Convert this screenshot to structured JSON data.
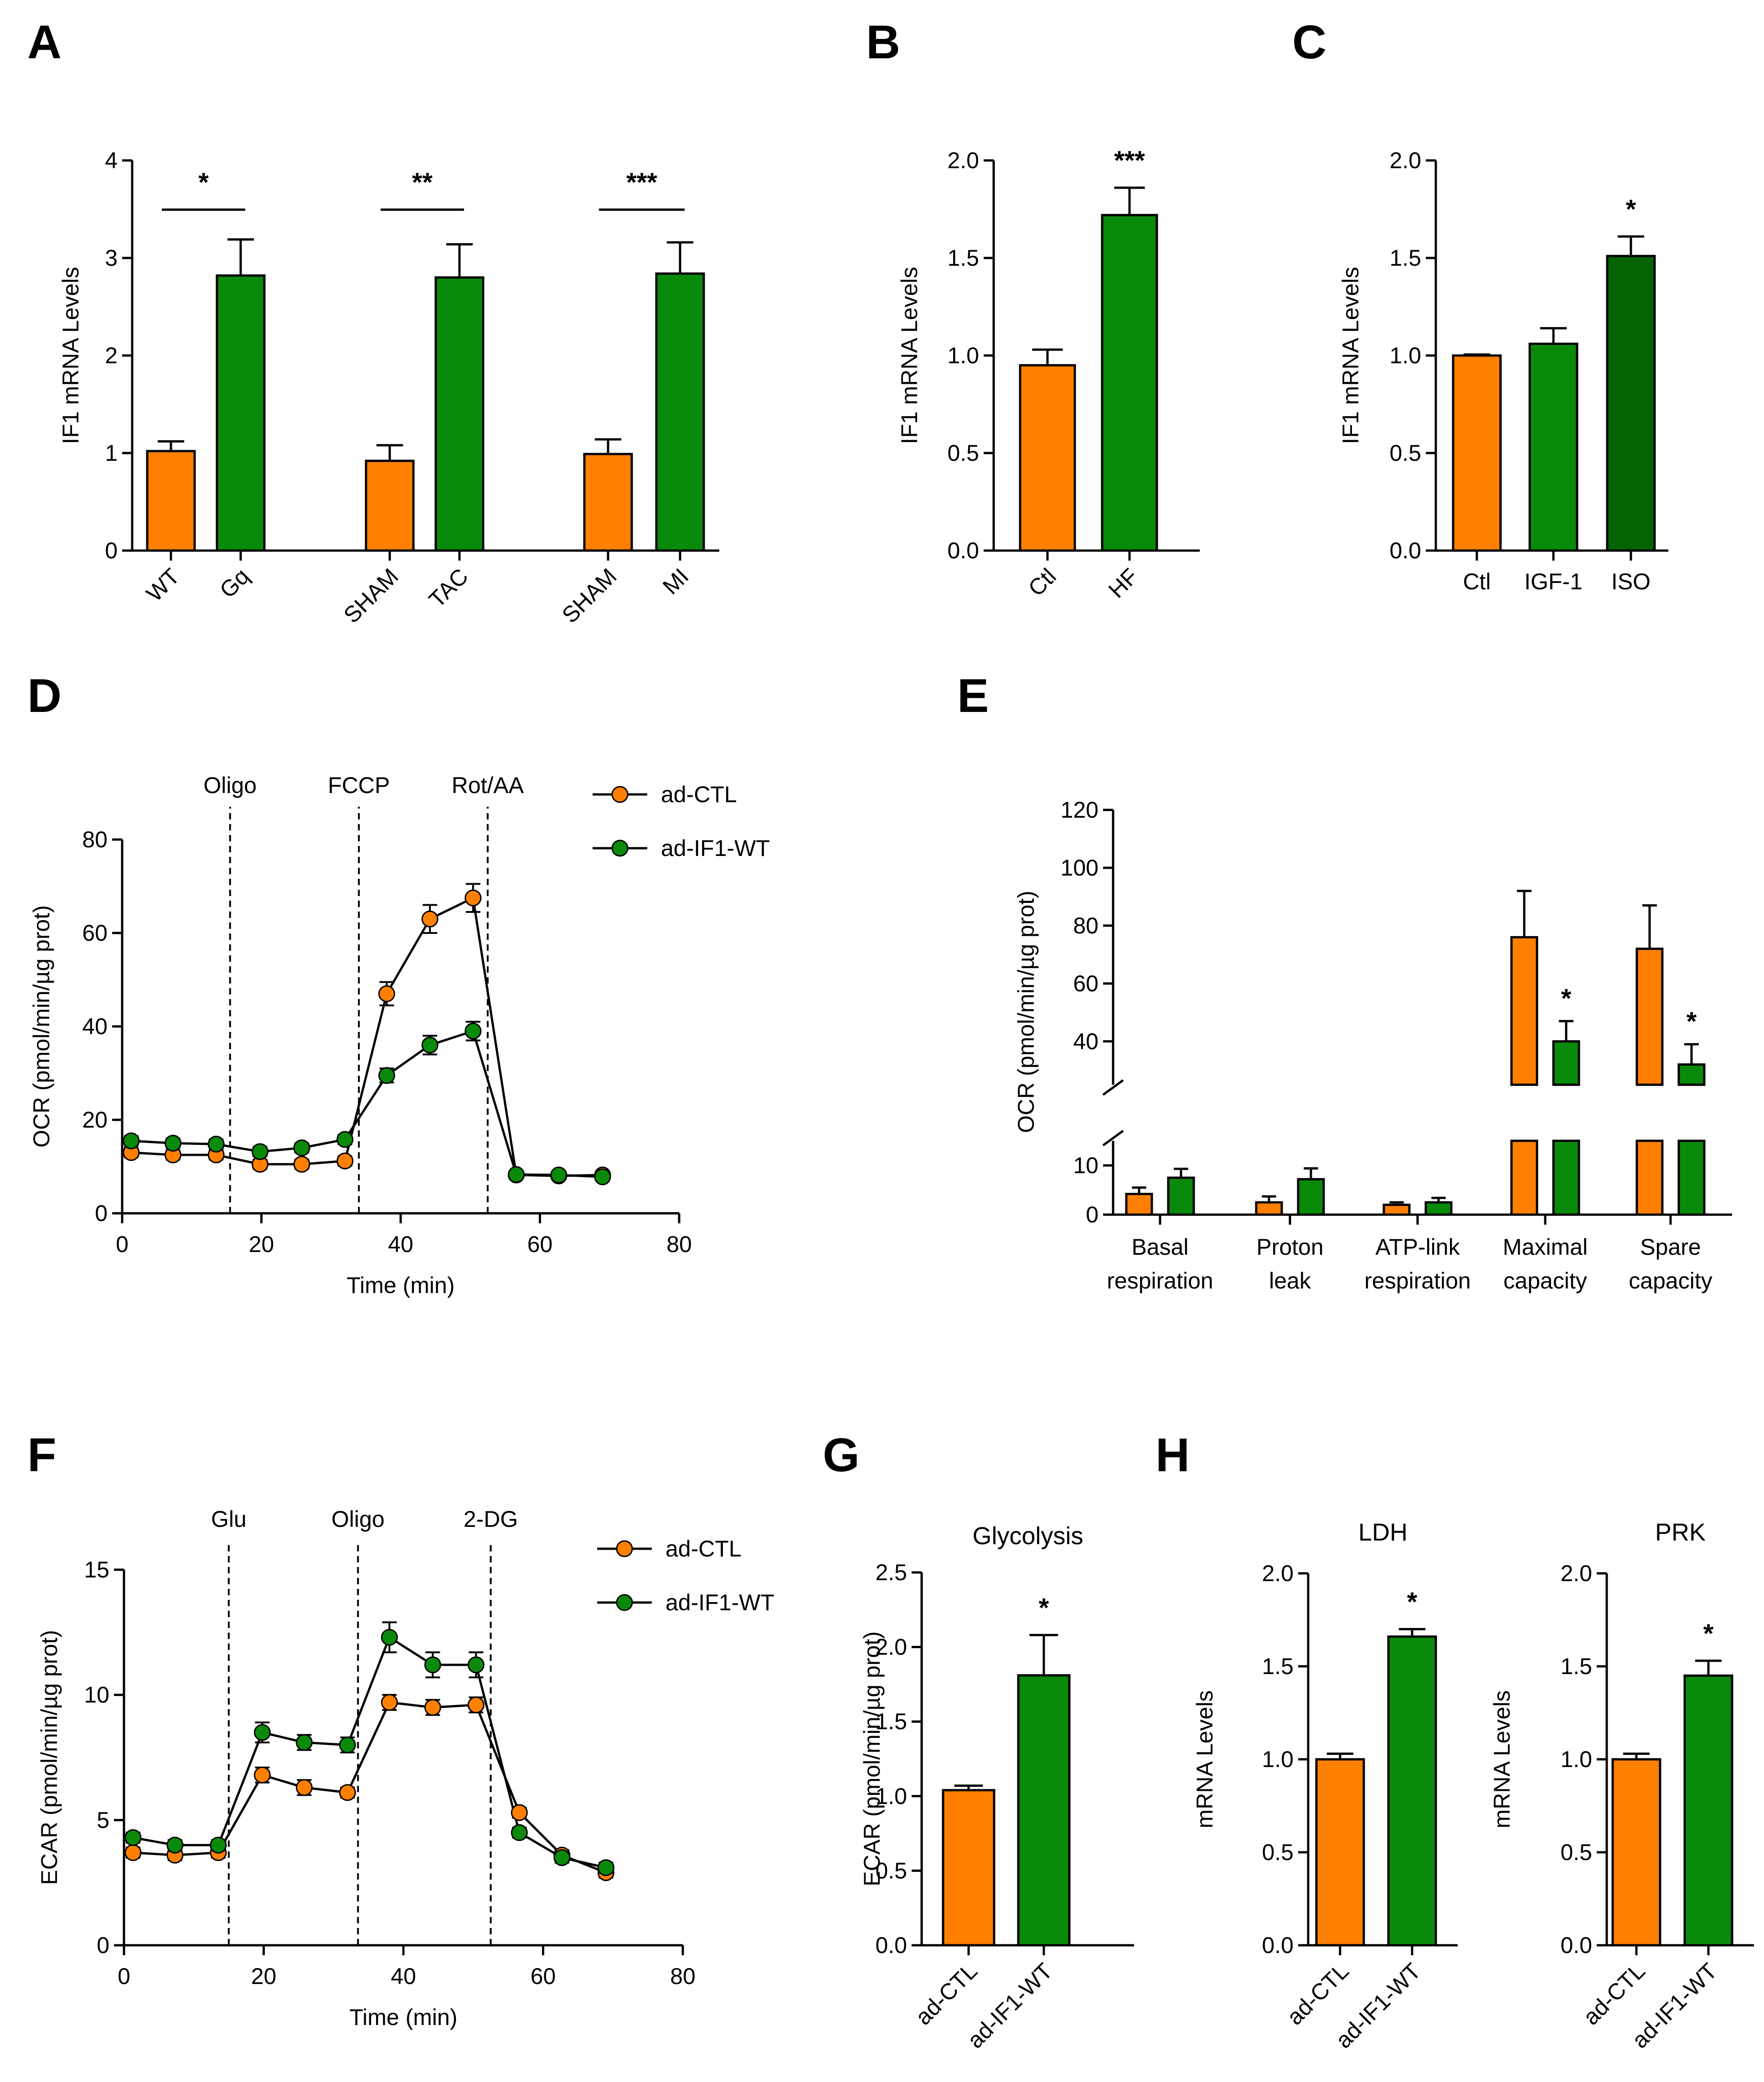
{
  "colors": {
    "orange": "#ff8000",
    "green": "#0a8a0a",
    "dark_green": "#046404",
    "axis": "#000000"
  },
  "chart_data": [
    {
      "panel": "A",
      "type": "bar",
      "ylabel": "IF1 mRNA Levels",
      "ylim": [
        0,
        4
      ],
      "yticks": [
        "0",
        "1",
        "2",
        "3",
        "4"
      ],
      "groups": [
        {
          "bars": [
            {
              "label": "WT",
              "value": 1.02,
              "err": 0.1,
              "color": "orange"
            },
            {
              "label": "Gq",
              "value": 2.82,
              "err": 0.37,
              "color": "green"
            }
          ],
          "sig": "*"
        },
        {
          "bars": [
            {
              "label": "SHAM",
              "value": 0.92,
              "err": 0.16,
              "color": "orange"
            },
            {
              "label": "TAC",
              "value": 2.8,
              "err": 0.34,
              "color": "green"
            }
          ],
          "sig": "**"
        },
        {
          "bars": [
            {
              "label": "SHAM",
              "value": 0.99,
              "err": 0.15,
              "color": "orange"
            },
            {
              "label": "MI",
              "value": 2.84,
              "err": 0.32,
              "color": "green"
            }
          ],
          "sig": "***"
        }
      ]
    },
    {
      "panel": "B",
      "type": "bar",
      "ylabel": "IF1 mRNA Levels",
      "ylim": [
        0,
        2
      ],
      "yticks": [
        "0.0",
        "0.5",
        "1.0",
        "1.5",
        "2.0"
      ],
      "bars": [
        {
          "label": "Ctl",
          "value": 0.95,
          "err": 0.08,
          "color": "orange",
          "sig": ""
        },
        {
          "label": "HF",
          "value": 1.72,
          "err": 0.14,
          "color": "green",
          "sig": "***"
        }
      ]
    },
    {
      "panel": "C",
      "type": "bar",
      "ylabel": "IF1 mRNA Levels",
      "ylim": [
        0,
        2
      ],
      "yticks": [
        "0.0",
        "0.5",
        "1.0",
        "1.5",
        "2.0"
      ],
      "bars": [
        {
          "label": "Ctl",
          "value": 1.0,
          "err": 0.005,
          "color": "orange",
          "sig": ""
        },
        {
          "label": "IGF-1",
          "value": 1.06,
          "err": 0.08,
          "color": "green",
          "sig": ""
        },
        {
          "label": "ISO",
          "value": 1.51,
          "err": 0.1,
          "color": "dark_green",
          "sig": "*"
        }
      ]
    },
    {
      "panel": "D",
      "type": "line",
      "xlabel": "Time (min)",
      "ylabel": "OCR (pmol/min/µg prot)",
      "xlim": [
        0,
        80
      ],
      "ylim": [
        0,
        80
      ],
      "xticks": [
        "0",
        "20",
        "40",
        "60",
        "80"
      ],
      "yticks": [
        "0",
        "20",
        "40",
        "60",
        "80"
      ],
      "injections": [
        {
          "label": "Oligo",
          "x": 15.5
        },
        {
          "label": "FCCP",
          "x": 34
        },
        {
          "label": "Rot/AA",
          "x": 52.5
        }
      ],
      "x": [
        1.3,
        7.3,
        13.5,
        19.8,
        25.8,
        32,
        38,
        44.2,
        50.4,
        56.6,
        62.7,
        69
      ],
      "series": [
        {
          "name": "ad-CTL",
          "color": "orange",
          "values": [
            13,
            12.5,
            12.5,
            10.5,
            10.5,
            11.2,
            47,
            63,
            67.5,
            8.2,
            8,
            8.2
          ],
          "err": [
            1,
            1,
            1,
            1,
            1,
            1,
            2.5,
            3,
            3,
            0.8,
            0.8,
            0.8
          ]
        },
        {
          "name": "ad-IF1-WT",
          "color": "green",
          "values": [
            15.5,
            15,
            14.8,
            13.2,
            14,
            15.8,
            29.5,
            36,
            39,
            8.3,
            8.2,
            7.8
          ],
          "err": [
            1,
            1,
            1,
            1,
            1,
            1,
            1.5,
            2,
            2,
            0.8,
            0.8,
            0.8
          ]
        }
      ]
    },
    {
      "panel": "E",
      "type": "bar",
      "ylabel": "OCR (pmol/min/µg prot)",
      "y_lower_ticks": [
        "0",
        "10"
      ],
      "y_upper_ticks": [
        "40",
        "60",
        "80",
        "100",
        "120"
      ],
      "axis_break": [
        15,
        25
      ],
      "groups": [
        {
          "label": [
            "Basal",
            "respiration"
          ],
          "bars": [
            {
              "name": "ad-CTL",
              "value": 4.2,
              "err": 1.3,
              "sig": ""
            },
            {
              "name": "ad-IF1-WT",
              "value": 7.5,
              "err": 1.8,
              "sig": ""
            }
          ]
        },
        {
          "label": [
            "Proton",
            "leak"
          ],
          "bars": [
            {
              "name": "ad-CTL",
              "value": 2.5,
              "err": 1.2,
              "sig": ""
            },
            {
              "name": "ad-IF1-WT",
              "value": 7.2,
              "err": 2.2,
              "sig": ""
            }
          ]
        },
        {
          "label": [
            "ATP-link",
            "respiration"
          ],
          "bars": [
            {
              "name": "ad-CTL",
              "value": 2.0,
              "err": 0.5,
              "sig": ""
            },
            {
              "name": "ad-IF1-WT",
              "value": 2.5,
              "err": 0.9,
              "sig": ""
            }
          ]
        },
        {
          "label": [
            "Maximal",
            "capacity"
          ],
          "bars": [
            {
              "name": "ad-CTL",
              "value": 76,
              "err": 16,
              "sig": ""
            },
            {
              "name": "ad-IF1-WT",
              "value": 40,
              "err": 7,
              "sig": "*"
            }
          ]
        },
        {
          "label": [
            "Spare",
            "capacity"
          ],
          "bars": [
            {
              "name": "ad-CTL",
              "value": 72,
              "err": 15,
              "sig": ""
            },
            {
              "name": "ad-IF1-WT",
              "value": 32,
              "err": 7,
              "sig": "*"
            }
          ]
        }
      ]
    },
    {
      "panel": "F",
      "type": "line",
      "xlabel": "Time (min)",
      "ylabel": "ECAR (pmol/min/µg prot)",
      "xlim": [
        0,
        80
      ],
      "ylim": [
        0,
        15
      ],
      "xticks": [
        "0",
        "20",
        "40",
        "60",
        "80"
      ],
      "yticks": [
        "0",
        "5",
        "10",
        "15"
      ],
      "injections": [
        {
          "label": "Glu",
          "x": 15
        },
        {
          "label": "Oligo",
          "x": 33.5
        },
        {
          "label": "2-DG",
          "x": 52.5
        }
      ],
      "x": [
        1.3,
        7.3,
        13.5,
        19.8,
        25.8,
        32,
        38,
        44.2,
        50.4,
        56.6,
        62.7,
        69
      ],
      "series": [
        {
          "name": "ad-CTL",
          "color": "orange",
          "values": [
            3.7,
            3.6,
            3.7,
            6.8,
            6.3,
            6.1,
            9.7,
            9.5,
            9.6,
            5.3,
            3.6,
            2.9
          ],
          "err": [
            0.2,
            0.2,
            0.2,
            0.3,
            0.3,
            0.2,
            0.3,
            0.3,
            0.3,
            0.2,
            0.2,
            0.2
          ]
        },
        {
          "name": "ad-IF1-WT",
          "color": "green",
          "values": [
            4.3,
            4.0,
            4.0,
            8.5,
            8.1,
            8.0,
            12.3,
            11.2,
            11.2,
            4.5,
            3.5,
            3.1
          ],
          "err": [
            0.2,
            0.2,
            0.2,
            0.4,
            0.3,
            0.3,
            0.6,
            0.5,
            0.5,
            0.2,
            0.2,
            0.2
          ]
        }
      ]
    },
    {
      "panel": "G",
      "type": "bar",
      "title": "Glycolysis",
      "ylabel": "ECAR (pmol/min/µg prot)",
      "ylim": [
        0,
        2.5
      ],
      "yticks": [
        "0.0",
        "0.5",
        "1.0",
        "1.5",
        "2.0",
        "2.5"
      ],
      "bars": [
        {
          "label": "ad-CTL",
          "value": 1.04,
          "err": 0.03,
          "color": "orange",
          "sig": ""
        },
        {
          "label": "ad-IF1-WT",
          "value": 1.81,
          "err": 0.27,
          "color": "green",
          "sig": "*"
        }
      ]
    },
    {
      "panel": "H",
      "type": "bar",
      "title": "LDH",
      "ylabel": "mRNA Levels",
      "ylim": [
        0,
        2
      ],
      "yticks": [
        "0.0",
        "0.5",
        "1.0",
        "1.5",
        "2.0"
      ],
      "bars": [
        {
          "label": "ad-CTL",
          "value": 1.0,
          "err": 0.03,
          "color": "orange",
          "sig": ""
        },
        {
          "label": "ad-IF1-WT",
          "value": 1.66,
          "err": 0.04,
          "color": "green",
          "sig": "*"
        }
      ]
    },
    {
      "panel": "H",
      "type": "bar",
      "title": "PRK",
      "ylabel": "mRNA Levels",
      "ylim": [
        0,
        2
      ],
      "yticks": [
        "0.0",
        "0.5",
        "1.0",
        "1.5",
        "2.0"
      ],
      "bars": [
        {
          "label": "ad-CTL",
          "value": 1.0,
          "err": 0.03,
          "color": "orange",
          "sig": ""
        },
        {
          "label": "ad-IF1-WT",
          "value": 1.45,
          "err": 0.08,
          "color": "green",
          "sig": "*"
        }
      ]
    }
  ]
}
